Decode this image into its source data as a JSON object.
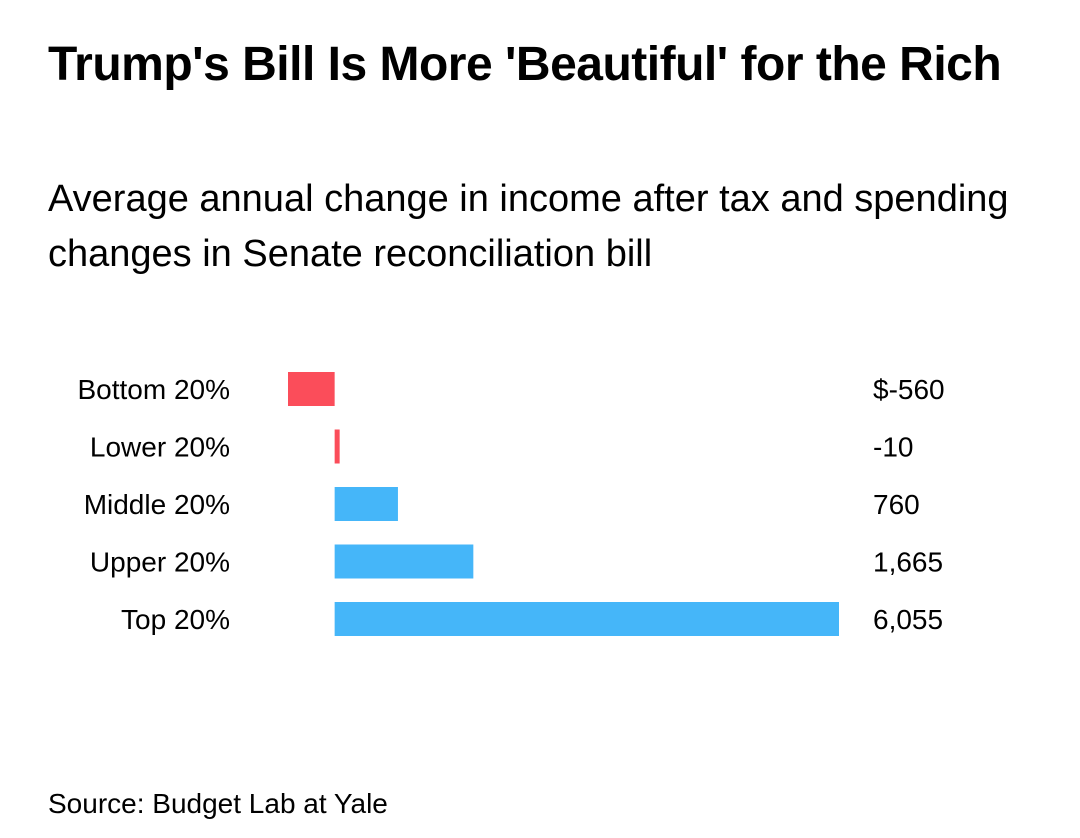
{
  "title": "Trump's Bill Is More 'Beautiful' for the Rich",
  "subtitle": "Average annual change in income after tax and spending changes in Senate reconciliation bill",
  "source": "Source: Budget Lab at Yale",
  "colors": {
    "positive": "#45b6f9",
    "negative": "#fb4d5a",
    "text": "#000000"
  },
  "chart_data": {
    "type": "bar",
    "orientation": "horizontal",
    "categories": [
      "Bottom 20%",
      "Lower 20%",
      "Middle 20%",
      "Upper 20%",
      "Top 20%"
    ],
    "values": [
      -560,
      -10,
      760,
      1665,
      6055
    ],
    "value_labels": [
      "$-560",
      "-10",
      "760",
      "1,665",
      "6,055"
    ],
    "xlim": [
      -560,
      6055
    ],
    "grid": false,
    "legend": "none"
  }
}
